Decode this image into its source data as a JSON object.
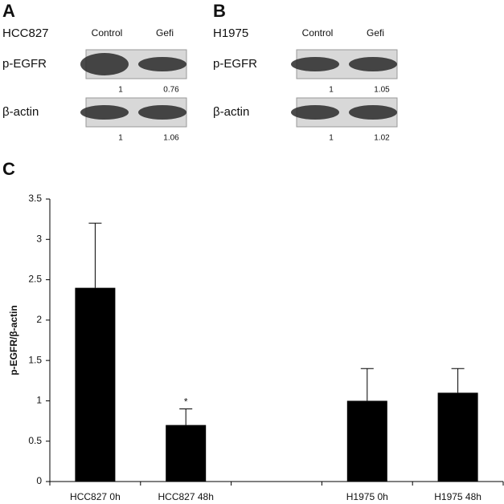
{
  "panels": [
    {
      "label": "A",
      "cell_line": "HCC827",
      "lanes": [
        "Control",
        "Gefi"
      ],
      "blots": [
        {
          "protein": "p-EGFR",
          "quantification": [
            1,
            0.76
          ]
        },
        {
          "protein": "β-actin",
          "quantification": [
            1,
            1.06
          ]
        }
      ]
    },
    {
      "label": "B",
      "cell_line": "H1975",
      "lanes": [
        "Control",
        "Gefi"
      ],
      "blots": [
        {
          "protein": "p-EGFR",
          "quantification": [
            1,
            1.05
          ]
        },
        {
          "protein": "β-actin",
          "quantification": [
            1,
            1.02
          ]
        }
      ]
    }
  ],
  "chart_data": {
    "type": "bar",
    "panel_label": "C",
    "y_label": "p-EGFR/β-actin",
    "categories": [
      "HCC827 0h",
      "HCC827 48h",
      null,
      "H1975 0h",
      "H1975 48h"
    ],
    "values": [
      2.4,
      0.7,
      null,
      1.0,
      1.1
    ],
    "errors": [
      0.8,
      0.2,
      null,
      0.4,
      0.3
    ],
    "annotations": [
      {
        "text": "*",
        "category": 1
      }
    ],
    "color": "#000000",
    "ylim": [
      0,
      3.5
    ],
    "yticks": [
      0,
      0.5,
      1,
      1.5,
      2,
      2.5,
      3,
      3.5
    ],
    "grid": false
  }
}
